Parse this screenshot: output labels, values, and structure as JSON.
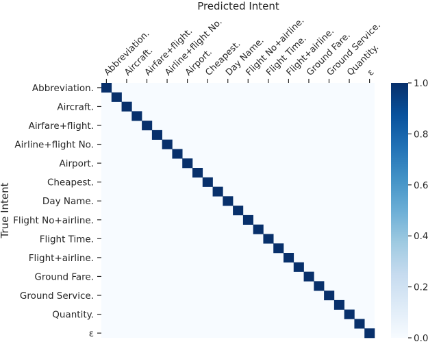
{
  "chart_data": {
    "type": "heatmap",
    "title": "",
    "xlabel": "Predicted Intent",
    "ylabel": "True Intent",
    "x_axis_position": "top",
    "x_tick_rotation": "diagonal",
    "x_labels": [
      "Abbreviation.",
      "Aircraft.",
      "Airfare+flight.",
      "Airline+flight No.",
      "Airport.",
      "Cheapest.",
      "Day Name.",
      "Flight No+airline.",
      "Flight Time.",
      "Flight+airline.",
      "Ground Fare.",
      "Ground Service.",
      "Quantity.",
      "ε"
    ],
    "y_labels": [
      "Abbreviation.",
      "Aircraft.",
      "Airfare+flight.",
      "Airline+flight No.",
      "Airport.",
      "Cheapest.",
      "Day Name.",
      "Flight No+airline.",
      "Flight Time.",
      "Flight+airline.",
      "Ground Fare.",
      "Ground Service.",
      "Quantity.",
      "ε"
    ],
    "x_tick_count": 27,
    "y_tick_count": 27,
    "note_grid": "Heatmap has 27 x 27 cells; labels are shown on every other cell (even indices). Diagonal cells are 1.0, all others 0.0.",
    "diagonal_value": 1.0,
    "off_diagonal_value": 0.0,
    "colorbar": {
      "colormap": "Blues",
      "range": [
        0.0,
        1.0
      ],
      "ticks": [
        "0.0",
        "0.2",
        "0.4",
        "0.6",
        "0.8",
        "1.0"
      ]
    },
    "colors": {
      "low": "#f7fbff",
      "high": "#08306b"
    }
  }
}
